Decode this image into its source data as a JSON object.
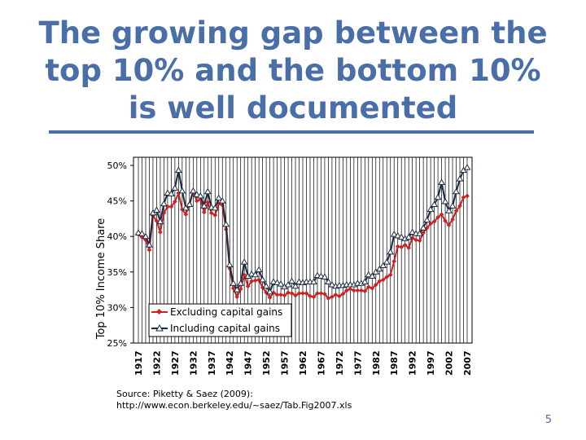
{
  "slide": {
    "title_lines": [
      "The growing gap between the",
      "top 10% and the bottom 10%",
      "is well documented"
    ],
    "source_line1": "Source: Piketty & Saez (2009):",
    "source_line2": "http://www.econ.berkeley.edu/~saez/Tab.Fig2007.xls",
    "page_number": "5",
    "accent_color": "#4a6ea8"
  },
  "chart_data": {
    "type": "line",
    "title": "",
    "xlabel": "",
    "ylabel": "Top 10% Income Share",
    "x_tick_labels": [
      "1917",
      "1922",
      "1927",
      "1932",
      "1937",
      "1942",
      "1947",
      "1952",
      "1957",
      "1962",
      "1967",
      "1972",
      "1977",
      "1982",
      "1987",
      "1992",
      "1997",
      "2002",
      "2007"
    ],
    "y_tick_labels": [
      "25%",
      "30%",
      "35%",
      "40%",
      "45%",
      "50%"
    ],
    "ylim": [
      25,
      50
    ],
    "xlim": [
      1917,
      2007
    ],
    "grid": "vertical",
    "legend_position": "bottom-left",
    "series": [
      {
        "name": "Excluding capital gains",
        "color": "#cc2222",
        "marker": "diamond",
        "x": [
          1917,
          1918,
          1919,
          1920,
          1921,
          1922,
          1923,
          1924,
          1925,
          1926,
          1927,
          1928,
          1929,
          1930,
          1931,
          1932,
          1933,
          1934,
          1935,
          1936,
          1937,
          1938,
          1939,
          1940,
          1941,
          1942,
          1943,
          1944,
          1945,
          1946,
          1947,
          1948,
          1949,
          1950,
          1951,
          1952,
          1953,
          1954,
          1955,
          1956,
          1957,
          1958,
          1959,
          1960,
          1961,
          1962,
          1963,
          1964,
          1965,
          1966,
          1967,
          1968,
          1969,
          1970,
          1971,
          1972,
          1973,
          1974,
          1975,
          1976,
          1977,
          1978,
          1979,
          1980,
          1981,
          1982,
          1983,
          1984,
          1985,
          1986,
          1987,
          1988,
          1989,
          1990,
          1991,
          1992,
          1993,
          1994,
          1995,
          1996,
          1997,
          1998,
          1999,
          2000,
          2001,
          2002,
          2003,
          2004,
          2005,
          2006,
          2007
        ],
        "values": [
          40.3,
          39.9,
          39.5,
          38.1,
          42.9,
          42.2,
          40.6,
          43.3,
          44.2,
          44.2,
          44.9,
          46.1,
          43.8,
          43.1,
          44.6,
          46.3,
          45.0,
          45.2,
          43.4,
          44.8,
          43.3,
          43.0,
          44.6,
          44.4,
          41.0,
          35.5,
          32.7,
          31.5,
          32.6,
          34.6,
          33.0,
          33.7,
          33.8,
          33.9,
          32.8,
          32.1,
          31.4,
          32.1,
          31.8,
          31.8,
          31.7,
          32.1,
          32.0,
          31.7,
          32.0,
          32.0,
          32.0,
          31.6,
          31.5,
          32.0,
          32.0,
          31.9,
          31.3,
          31.5,
          31.8,
          31.6,
          31.9,
          32.4,
          32.6,
          32.4,
          32.4,
          32.4,
          32.3,
          32.9,
          32.7,
          33.2,
          33.7,
          33.9,
          34.3,
          34.6,
          36.5,
          38.6,
          38.5,
          38.8,
          38.4,
          39.8,
          39.5,
          39.4,
          40.5,
          41.2,
          41.8,
          42.1,
          42.7,
          43.1,
          42.2,
          41.6,
          42.4,
          43.6,
          44.3,
          45.5,
          45.7
        ]
      },
      {
        "name": "Including capital gains",
        "color": "#1a2a44",
        "marker": "triangle",
        "x": [
          1917,
          1918,
          1919,
          1920,
          1921,
          1922,
          1923,
          1924,
          1925,
          1926,
          1927,
          1928,
          1929,
          1930,
          1931,
          1932,
          1933,
          1934,
          1935,
          1936,
          1937,
          1938,
          1939,
          1940,
          1941,
          1942,
          1943,
          1944,
          1945,
          1946,
          1947,
          1948,
          1949,
          1950,
          1951,
          1952,
          1953,
          1954,
          1955,
          1956,
          1957,
          1958,
          1959,
          1960,
          1961,
          1962,
          1963,
          1964,
          1965,
          1966,
          1967,
          1968,
          1969,
          1970,
          1971,
          1972,
          1973,
          1974,
          1975,
          1976,
          1977,
          1978,
          1979,
          1980,
          1981,
          1982,
          1983,
          1984,
          1985,
          1986,
          1987,
          1988,
          1989,
          1990,
          1991,
          1992,
          1993,
          1994,
          1995,
          1996,
          1997,
          1998,
          1999,
          2000,
          2001,
          2002,
          2003,
          2004,
          2005,
          2006,
          2007
        ],
        "values": [
          40.5,
          40.4,
          40.0,
          38.8,
          43.3,
          43.7,
          42.1,
          44.6,
          46.1,
          46.0,
          46.8,
          49.3,
          46.4,
          44.0,
          44.5,
          46.4,
          45.9,
          45.7,
          44.3,
          46.3,
          44.1,
          44.0,
          45.4,
          45.0,
          41.7,
          36.0,
          33.4,
          32.5,
          33.4,
          36.4,
          34.4,
          34.7,
          34.6,
          35.3,
          33.9,
          33.0,
          32.2,
          33.6,
          33.5,
          33.3,
          32.9,
          33.2,
          33.7,
          33.0,
          33.6,
          33.5,
          33.6,
          33.6,
          33.6,
          34.5,
          34.4,
          34.3,
          33.6,
          33.2,
          33.0,
          33.1,
          33.1,
          33.2,
          33.2,
          33.2,
          33.4,
          33.4,
          33.6,
          34.6,
          34.4,
          35.0,
          35.4,
          35.9,
          36.4,
          37.8,
          40.3,
          40.1,
          39.9,
          39.7,
          39.9,
          40.6,
          40.4,
          40.4,
          41.2,
          42.3,
          43.8,
          44.5,
          45.5,
          47.6,
          44.9,
          43.6,
          44.3,
          46.3,
          48.1,
          49.3,
          49.7
        ]
      }
    ]
  }
}
